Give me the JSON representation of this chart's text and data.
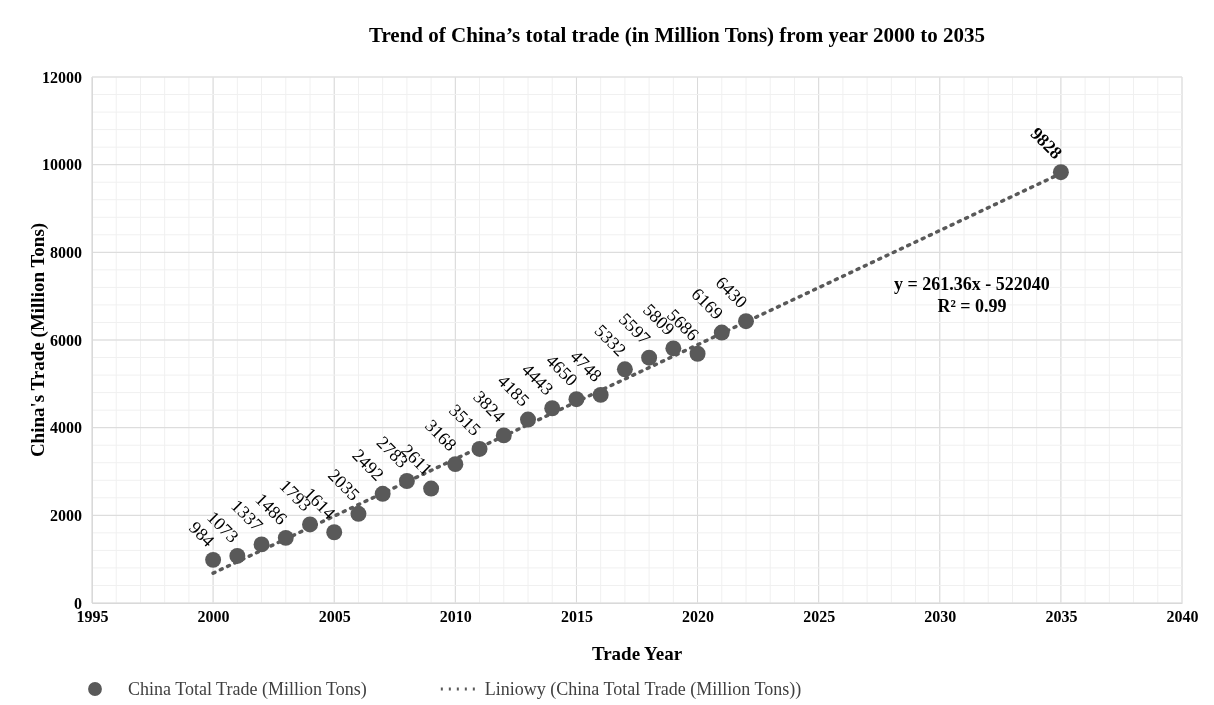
{
  "chart_data": {
    "type": "scatter",
    "title": "Trend of China’s total trade (in Million Tons) from year 2000 to 2035",
    "xlabel": "Trade Year",
    "ylabel": "China's Trade (Million Tons)",
    "xlim": [
      1995,
      2040
    ],
    "xticks": [
      1995,
      2000,
      2005,
      2010,
      2015,
      2020,
      2025,
      2030,
      2035,
      2040
    ],
    "ylim": [
      0,
      12000
    ],
    "yticks": [
      0,
      2000,
      4000,
      6000,
      8000,
      10000,
      12000
    ],
    "grid": true,
    "legend": "bottom",
    "series": [
      {
        "name": "China Total Trade (Million Tons)",
        "marker": "circle",
        "color": "#595959",
        "data_labels": true,
        "x": [
          2000,
          2001,
          2002,
          2003,
          2004,
          2005,
          2006,
          2007,
          2008,
          2009,
          2010,
          2011,
          2012,
          2013,
          2014,
          2015,
          2016,
          2017,
          2018,
          2019,
          2020,
          2021,
          2022,
          2035
        ],
        "values": [
          984,
          1073,
          1337,
          1486,
          1793,
          1614,
          2035,
          2492,
          2783,
          2611,
          3168,
          3515,
          3824,
          4185,
          4443,
          4650,
          4748,
          5332,
          5597,
          5809,
          5686,
          6169,
          6430,
          9828
        ]
      },
      {
        "name": "Liniowy (China Total Trade (Million Tons))",
        "type": "line",
        "color": "#595959",
        "line_style": "dotted",
        "marker": "none",
        "x": [
          2000,
          2035
        ],
        "values": [
          680,
          9800
        ]
      }
    ],
    "annotations": [
      "y = 261.36x - 522040",
      "R² = 0.99"
    ]
  }
}
